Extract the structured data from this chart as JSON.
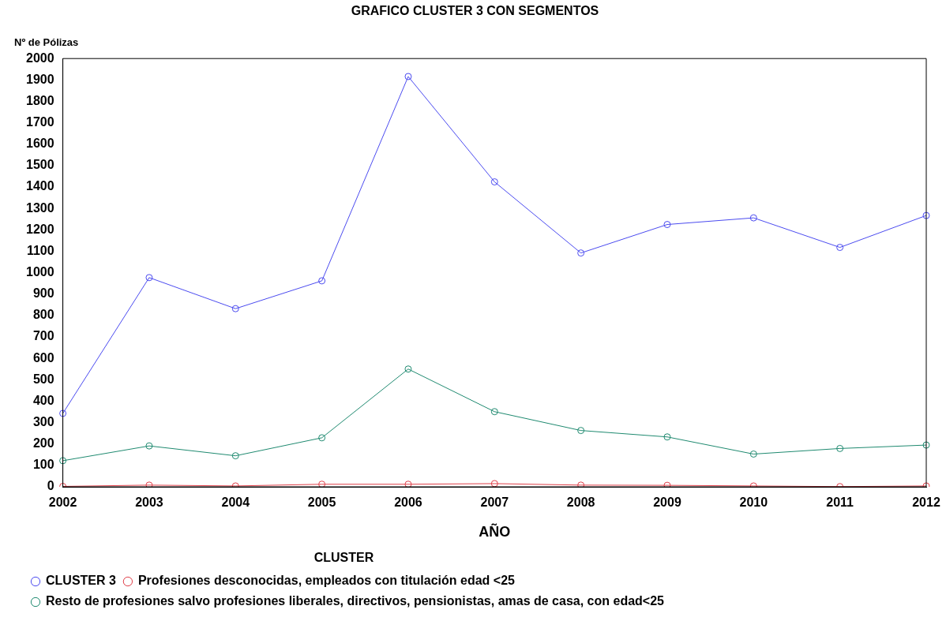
{
  "chart_data": {
    "type": "line",
    "title": "GRAFICO CLUSTER 3 CON SEGMENTOS",
    "xlabel": "AÑO",
    "ylabel": "Nº de Pólizas",
    "legend_title": "CLUSTER",
    "categories": [
      "2002",
      "2003",
      "2004",
      "2005",
      "2006",
      "2007",
      "2008",
      "2009",
      "2010",
      "2011",
      "2012"
    ],
    "series": [
      {
        "name": "CLUSTER 3",
        "color": "#4b4bf0",
        "values": [
          343,
          977,
          832,
          962,
          1916,
          1424,
          1092,
          1225,
          1256,
          1118,
          1267
        ]
      },
      {
        "name": "Profesiones desconocidas, empleados con titulación edad <25",
        "color": "#e0404a",
        "values": [
          2,
          8,
          4,
          12,
          12,
          15,
          8,
          7,
          4,
          1,
          4
        ]
      },
      {
        "name": "Resto de profesiones salvo profesiones liberales, directivos, pensionistas, amas de casa, con edad<25",
        "color": "#1f8a70",
        "values": [
          122,
          191,
          145,
          229,
          550,
          351,
          263,
          233,
          153,
          179,
          195
        ]
      }
    ],
    "ylim": [
      0,
      2000
    ],
    "yticks": [
      0,
      100,
      200,
      300,
      400,
      500,
      600,
      700,
      800,
      900,
      1000,
      1100,
      1200,
      1300,
      1400,
      1500,
      1600,
      1700,
      1800,
      1900,
      2000
    ],
    "grid": false,
    "legend": "bottom",
    "marker": "circle",
    "line_style": "solid"
  }
}
